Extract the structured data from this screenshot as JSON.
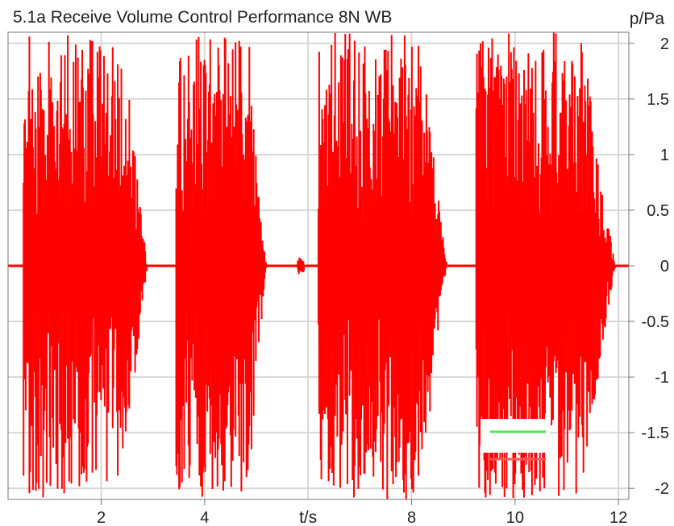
{
  "chart_data": {
    "type": "line",
    "title": "5.1a Receive Volume Control Performance 8N WB",
    "xlabel": "t/s",
    "ylabel": "p/Pa",
    "xlim": [
      0.2,
      12.2
    ],
    "ylim": [
      -2.1,
      2.1
    ],
    "x_ticks": [
      {
        "value": 2,
        "label": "2"
      },
      {
        "value": 4,
        "label": "4"
      },
      {
        "value": 8,
        "label": "8"
      },
      {
        "value": 10,
        "label": "10"
      },
      {
        "value": 12,
        "label": "12"
      }
    ],
    "x_label_position": 6,
    "x_gridlines": [
      2,
      4,
      6,
      8,
      10,
      12
    ],
    "y_ticks": [
      {
        "value": 2,
        "label": "2"
      },
      {
        "value": 1.5,
        "label": "1.5"
      },
      {
        "value": 1,
        "label": "1"
      },
      {
        "value": 0.5,
        "label": "0.5"
      },
      {
        "value": 0,
        "label": "0"
      },
      {
        "value": -0.5,
        "label": "-0.5"
      },
      {
        "value": -1,
        "label": "-1"
      },
      {
        "value": -1.5,
        "label": "-1.5"
      },
      {
        "value": -2,
        "label": "-2"
      }
    ],
    "grid": true,
    "legend": {
      "placement": "bottom-right",
      "entries": [
        {
          "color": "#55e055"
        },
        {
          "color": "#ff5a5a"
        }
      ]
    },
    "series": [
      {
        "color": "#ff0000",
        "segments": [
          {
            "start": 0.5,
            "end": 2.9,
            "peak": 2.1,
            "decay_start": 2.45
          },
          {
            "start": 3.45,
            "end": 5.2,
            "peak": 2.1,
            "decay_start": 4.85
          },
          {
            "start": 5.8,
            "end": 5.95,
            "peak": 0.08,
            "decay_start": 5.9
          },
          {
            "start": 6.2,
            "end": 8.7,
            "peak": 2.1,
            "decay_start": 8.2
          },
          {
            "start": 9.25,
            "end": 11.95,
            "peak": 2.1,
            "decay_start": 11.3
          }
        ]
      }
    ]
  }
}
